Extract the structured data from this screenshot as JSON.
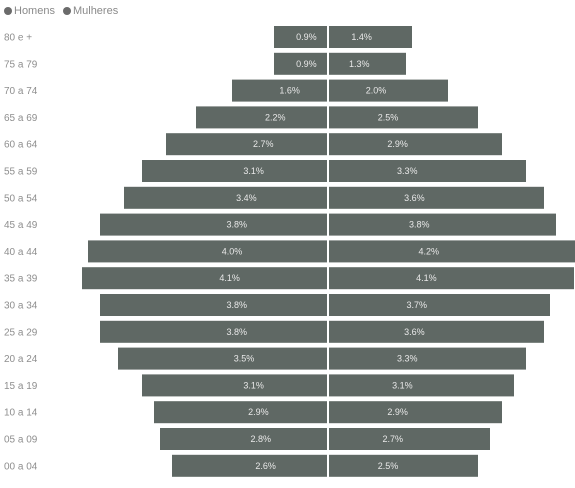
{
  "legend": {
    "men_label": "Homens",
    "women_label": "Mulheres"
  },
  "colors": {
    "men": "#5f6864",
    "women": "#5f6864",
    "legend_men": "#6b6b6b",
    "legend_women": "#6b6b6b",
    "label": "#8e8e8e",
    "bar_text": "#e8e8e8"
  },
  "chart_data": {
    "type": "bar",
    "orientation": "horizontal",
    "stacked": "diverging",
    "categories": [
      "80 e +",
      "75 a 79",
      "70 a 74",
      "65 a 69",
      "60 a 64",
      "55 a 59",
      "50 a 54",
      "45 a 49",
      "40 a 44",
      "35 a 39",
      "30 a 34",
      "25 a 29",
      "20 a 24",
      "15 a 19",
      "10 a 14",
      "05 a 09",
      "00 a 04"
    ],
    "series": [
      {
        "name": "Homens",
        "values": [
          0.9,
          0.9,
          1.6,
          2.2,
          2.7,
          3.1,
          3.4,
          3.8,
          4.0,
          4.1,
          3.8,
          3.8,
          3.5,
          3.1,
          2.9,
          2.8,
          2.6
        ],
        "labels": [
          "0.9%",
          "0.9%",
          "1.6%",
          "2.2%",
          "2.7%",
          "3.1%",
          "3.4%",
          "3.8%",
          "4.0%",
          "4.1%",
          "3.8%",
          "3.8%",
          "3.5%",
          "3.1%",
          "2.9%",
          "2.8%",
          "2.6%"
        ]
      },
      {
        "name": "Mulheres",
        "values": [
          1.4,
          1.3,
          2.0,
          2.5,
          2.9,
          3.3,
          3.6,
          3.8,
          4.2,
          4.1,
          3.7,
          3.6,
          3.3,
          3.1,
          2.9,
          2.7,
          2.5
        ],
        "labels": [
          "1.4%",
          "1.3%",
          "2.0%",
          "2.5%",
          "2.9%",
          "3.3%",
          "3.6%",
          "3.8%",
          "4.2%",
          "4.1%",
          "3.7%",
          "3.6%",
          "3.3%",
          "3.1%",
          "2.9%",
          "2.7%",
          "2.5%"
        ]
      }
    ],
    "xlabel": "",
    "ylabel": "",
    "title": "",
    "legend_position": "top-left",
    "grid": false
  }
}
